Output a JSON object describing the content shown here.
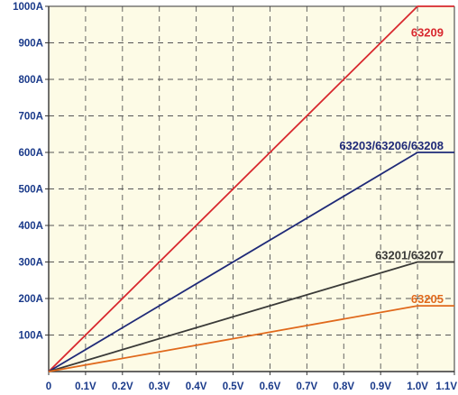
{
  "chart_data": {
    "type": "line",
    "title": "",
    "xlabel": "",
    "ylabel": "",
    "xlim": [
      0,
      1.1
    ],
    "ylim": [
      0,
      1000
    ],
    "grid": true,
    "x_ticks": [
      {
        "value": 0,
        "label": "0"
      },
      {
        "value": 0.1,
        "label": "0.1V"
      },
      {
        "value": 0.2,
        "label": "0.2V"
      },
      {
        "value": 0.3,
        "label": "0.3V"
      },
      {
        "value": 0.4,
        "label": "0.4V"
      },
      {
        "value": 0.5,
        "label": "0.5V"
      },
      {
        "value": 0.6,
        "label": "0.6V"
      },
      {
        "value": 0.7,
        "label": "0.7V"
      },
      {
        "value": 0.8,
        "label": "0.8V"
      },
      {
        "value": 0.9,
        "label": "0.9V"
      },
      {
        "value": 1.0,
        "label": "1.0V"
      },
      {
        "value": 1.1,
        "label": "1.1V"
      }
    ],
    "y_ticks": [
      {
        "value": 100,
        "label": "100A"
      },
      {
        "value": 200,
        "label": "200A"
      },
      {
        "value": 300,
        "label": "300A"
      },
      {
        "value": 400,
        "label": "400A"
      },
      {
        "value": 500,
        "label": "500A"
      },
      {
        "value": 600,
        "label": "600A"
      },
      {
        "value": 700,
        "label": "700A"
      },
      {
        "value": 800,
        "label": "800A"
      },
      {
        "value": 900,
        "label": "900A"
      },
      {
        "value": 1000,
        "label": "1000A"
      }
    ],
    "series": [
      {
        "name": "63209",
        "color": "#d8282e",
        "points": [
          [
            0,
            0
          ],
          [
            1.0,
            1000
          ],
          [
            1.1,
            1000
          ]
        ]
      },
      {
        "name": "63203/63206/63208",
        "color": "#1f2a78",
        "points": [
          [
            0,
            0
          ],
          [
            1.0,
            600
          ],
          [
            1.1,
            600
          ]
        ]
      },
      {
        "name": "63201/63207",
        "color": "#3a3a38",
        "points": [
          [
            0,
            0
          ],
          [
            1.0,
            300
          ],
          [
            1.1,
            300
          ]
        ]
      },
      {
        "name": "63205",
        "color": "#e0691c",
        "points": [
          [
            0,
            0
          ],
          [
            1.0,
            180
          ],
          [
            1.1,
            180
          ]
        ]
      }
    ]
  }
}
